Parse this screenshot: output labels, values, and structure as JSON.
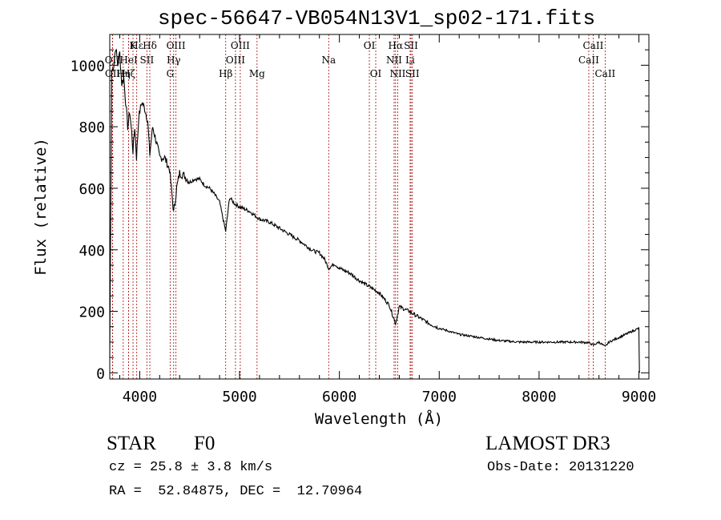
{
  "chart_data": {
    "type": "line",
    "title": "spec-56647-VB054N13V1_sp02-171.fits",
    "xlabel": "Wavelength (Å)",
    "ylabel": "Flux (relative)",
    "xlim": [
      3700,
      9100
    ],
    "ylim": [
      -20,
      1100
    ],
    "x_ticks": [
      4000,
      5000,
      6000,
      7000,
      8000,
      9000
    ],
    "y_ticks": [
      0,
      200,
      400,
      600,
      800,
      1000
    ],
    "series": [
      {
        "name": "spectrum",
        "x": [
          3700,
          3720,
          3740,
          3760,
          3780,
          3800,
          3820,
          3840,
          3860,
          3880,
          3900,
          3920,
          3933,
          3950,
          3968,
          3990,
          4020,
          4050,
          4080,
          4101,
          4130,
          4160,
          4200,
          4250,
          4300,
          4340,
          4370,
          4400,
          4450,
          4500,
          4550,
          4600,
          4650,
          4700,
          4750,
          4800,
          4861,
          4900,
          4950,
          5000,
          5100,
          5200,
          5300,
          5400,
          5500,
          5600,
          5700,
          5750,
          5800,
          5850,
          5893,
          5950,
          6000,
          6100,
          6200,
          6300,
          6400,
          6500,
          6563,
          6600,
          6700,
          6800,
          6900,
          7000,
          7200,
          7400,
          7600,
          7800,
          8000,
          8200,
          8400,
          8500,
          8542,
          8600,
          8662,
          8700,
          8800,
          8900,
          9000,
          9005
        ],
        "values": [
          50,
          980,
          1000,
          1060,
          1000,
          1040,
          940,
          960,
          880,
          800,
          850,
          780,
          720,
          800,
          700,
          830,
          880,
          860,
          820,
          710,
          800,
          760,
          700,
          700,
          660,
          520,
          600,
          650,
          640,
          620,
          630,
          630,
          610,
          600,
          580,
          555,
          460,
          570,
          550,
          540,
          525,
          500,
          490,
          470,
          450,
          430,
          405,
          395,
          390,
          370,
          340,
          355,
          340,
          325,
          300,
          280,
          260,
          220,
          160,
          215,
          200,
          180,
          160,
          145,
          125,
          115,
          105,
          100,
          100,
          100,
          100,
          98,
          90,
          100,
          85,
          100,
          115,
          130,
          145,
          0
        ]
      }
    ],
    "lines": [
      {
        "label": "Hε",
        "x": 3970,
        "row": 0
      },
      {
        "label": "K",
        "x": 3933,
        "row": 0
      },
      {
        "label": "Hδ",
        "x": 4101,
        "row": 0
      },
      {
        "label": "OIII",
        "x": 4363,
        "row": 0
      },
      {
        "label": "OIII",
        "x": 5007,
        "row": 0
      },
      {
        "label": "OI",
        "x": 6300,
        "row": 0
      },
      {
        "label": "Hα",
        "x": 6563,
        "row": 0
      },
      {
        "label": "SII",
        "x": 6717,
        "row": 0
      },
      {
        "label": "CaII",
        "x": 8542,
        "row": 0
      },
      {
        "label": "OII",
        "x": 3727,
        "row": 1
      },
      {
        "label": "HeI",
        "x": 3889,
        "row": 1
      },
      {
        "label": "SII",
        "x": 4072,
        "row": 1
      },
      {
        "label": "Hγ",
        "x": 4340,
        "row": 1
      },
      {
        "label": "OIII",
        "x": 4959,
        "row": 1
      },
      {
        "label": "Na",
        "x": 5893,
        "row": 1
      },
      {
        "label": "NII",
        "x": 6548,
        "row": 1
      },
      {
        "label": "Li",
        "x": 6708,
        "row": 1
      },
      {
        "label": "CaII",
        "x": 8498,
        "row": 1
      },
      {
        "label": "OII",
        "x": 3729,
        "row": 2
      },
      {
        "label": "Hη",
        "x": 3835,
        "row": 2
      },
      {
        "label": "Hζ",
        "x": 3889,
        "row": 2
      },
      {
        "label": "G",
        "x": 4305,
        "row": 2
      },
      {
        "label": "Hβ",
        "x": 4861,
        "row": 2
      },
      {
        "label": "Mg",
        "x": 5175,
        "row": 2
      },
      {
        "label": "OI",
        "x": 6364,
        "row": 2
      },
      {
        "label": "NII",
        "x": 6584,
        "row": 2
      },
      {
        "label": "SII",
        "x": 6731,
        "row": 2
      },
      {
        "label": "CaII",
        "x": 8662,
        "row": 2
      }
    ]
  },
  "info": {
    "class": "STAR",
    "subclass": "F0",
    "survey": "LAMOST DR3",
    "cz": "cz = 25.8 ± 3.8 km/s",
    "obs_date": "Obs-Date: 20131220",
    "coords": "RA =  52.84875, DEC =  12.70964"
  },
  "colors": {
    "line_marker": "#b22222",
    "spectrum": "#000000",
    "axes": "#000000"
  }
}
